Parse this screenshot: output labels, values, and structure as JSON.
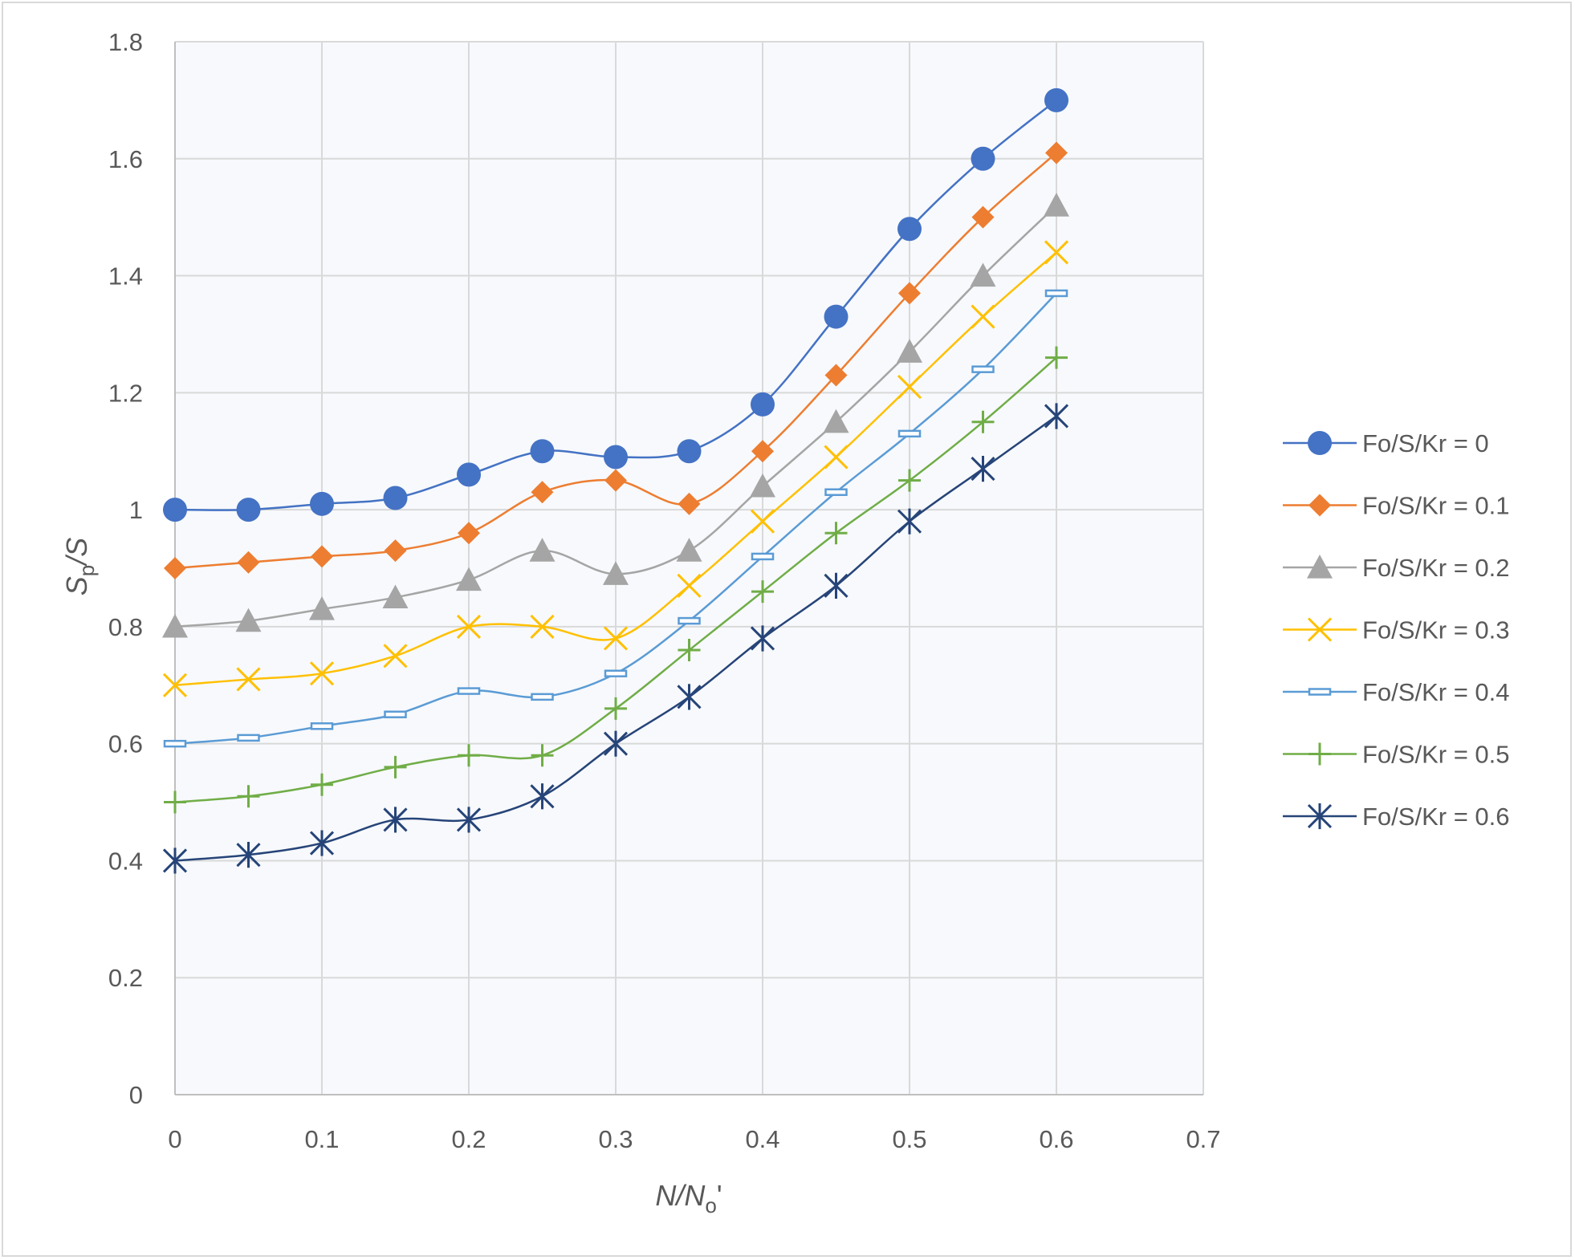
{
  "chart_data": {
    "type": "line",
    "title": "",
    "xlabel": {
      "main": "N/N",
      "sub": "o",
      "suffix": "'"
    },
    "ylabel": {
      "main": "S",
      "sub": "p",
      "suffix": "/S"
    },
    "xlim": [
      0,
      0.7
    ],
    "ylim": [
      0,
      1.8
    ],
    "xticks": [
      0,
      0.1,
      0.2,
      0.3,
      0.4,
      0.5,
      0.6,
      0.7
    ],
    "xtick_labels": [
      "0",
      "0.1",
      "0.2",
      "0.3",
      "0.4",
      "0.5",
      "0.6",
      "0.7"
    ],
    "yticks": [
      0,
      0.2,
      0.4,
      0.6,
      0.8,
      1.0,
      1.2,
      1.4,
      1.6,
      1.8
    ],
    "ytick_labels": [
      "0",
      "0.2",
      "0.4",
      "0.6",
      "0.8",
      "1",
      "1.2",
      "1.4",
      "1.6",
      "1.8"
    ],
    "grid": true,
    "legend_position": "right",
    "x": [
      0,
      0.05,
      0.1,
      0.15,
      0.2,
      0.25,
      0.3,
      0.35,
      0.4,
      0.45,
      0.5,
      0.55,
      0.6
    ],
    "series": [
      {
        "name": "Fo/S/Kr = 0",
        "color": "#4472c4",
        "marker": "circle",
        "values": [
          1.0,
          1.0,
          1.01,
          1.02,
          1.06,
          1.1,
          1.09,
          1.1,
          1.18,
          1.33,
          1.48,
          1.6,
          1.7
        ]
      },
      {
        "name": "Fo/S/Kr = 0.1",
        "color": "#ed7d31",
        "marker": "diamond",
        "values": [
          0.9,
          0.91,
          0.92,
          0.93,
          0.96,
          1.03,
          1.05,
          1.01,
          1.1,
          1.23,
          1.37,
          1.5,
          1.61
        ]
      },
      {
        "name": "Fo/S/Kr = 0.2",
        "color": "#a5a5a5",
        "marker": "triangle",
        "values": [
          0.8,
          0.81,
          0.83,
          0.85,
          0.88,
          0.93,
          0.89,
          0.93,
          1.04,
          1.15,
          1.27,
          1.4,
          1.52
        ]
      },
      {
        "name": "Fo/S/Kr = 0.3",
        "color": "#ffc000",
        "marker": "x",
        "values": [
          0.7,
          0.71,
          0.72,
          0.75,
          0.8,
          0.8,
          0.78,
          0.87,
          0.98,
          1.09,
          1.21,
          1.33,
          1.44
        ]
      },
      {
        "name": "Fo/S/Kr = 0.4",
        "color": "#5b9bd5",
        "marker": "dash",
        "values": [
          0.6,
          0.61,
          0.63,
          0.65,
          0.69,
          0.68,
          0.72,
          0.81,
          0.92,
          1.03,
          1.13,
          1.24,
          1.37
        ]
      },
      {
        "name": "Fo/S/Kr = 0.5",
        "color": "#70ad47",
        "marker": "plus",
        "values": [
          0.5,
          0.51,
          0.53,
          0.56,
          0.58,
          0.58,
          0.66,
          0.76,
          0.86,
          0.96,
          1.05,
          1.15,
          1.26
        ]
      },
      {
        "name": "Fo/S/Kr = 0.6",
        "color": "#264478",
        "marker": "star",
        "values": [
          0.4,
          0.41,
          0.43,
          0.47,
          0.47,
          0.51,
          0.6,
          0.68,
          0.78,
          0.87,
          0.98,
          1.07,
          1.16
        ]
      }
    ]
  }
}
